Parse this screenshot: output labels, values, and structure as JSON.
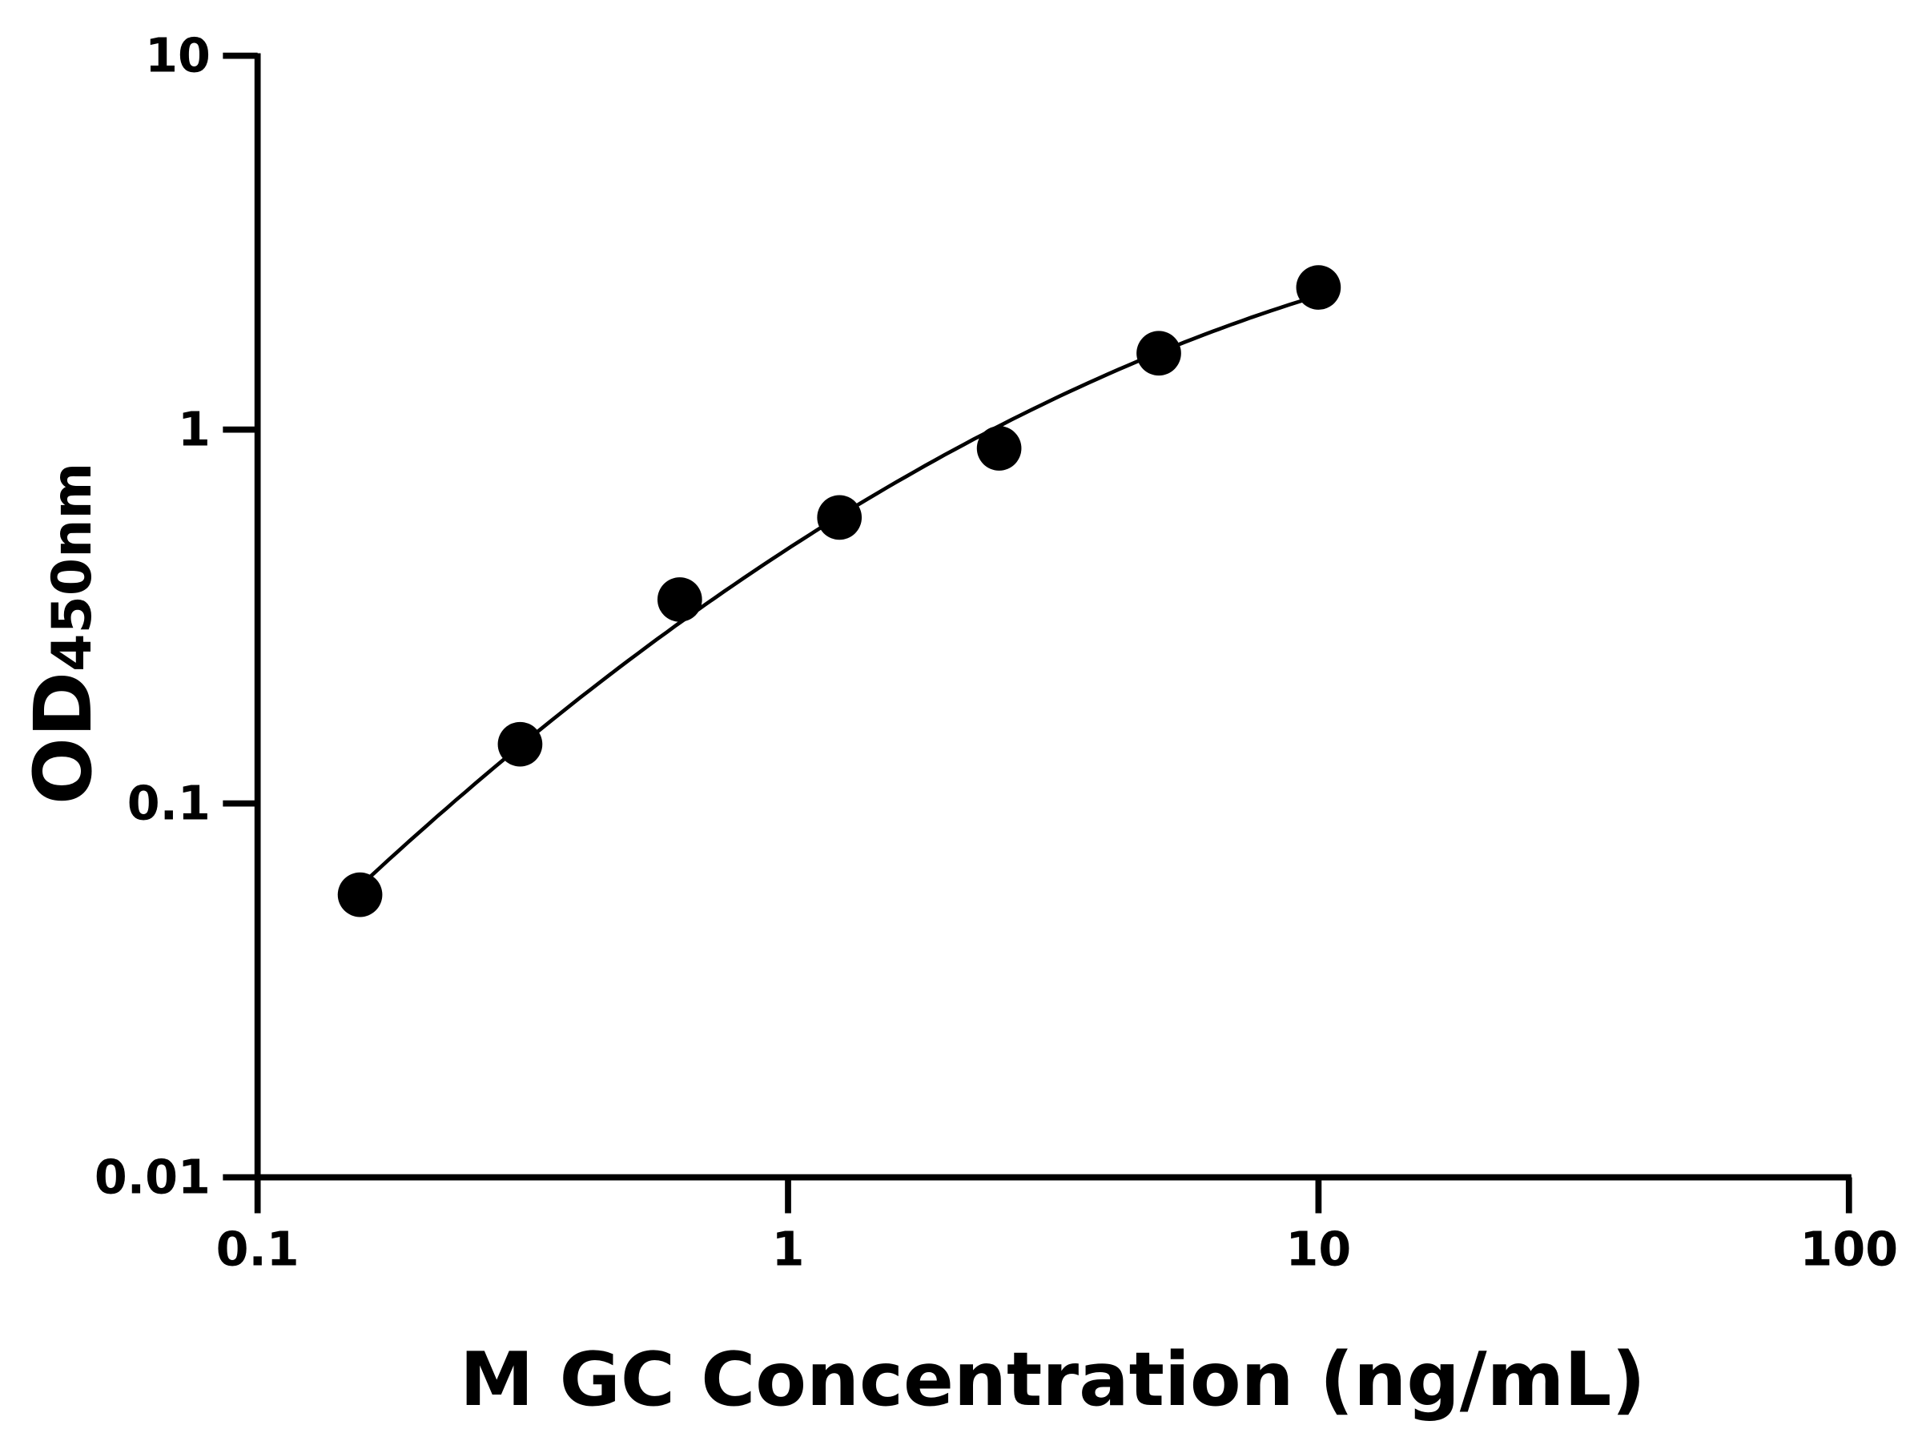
{
  "chart_data": {
    "type": "scatter",
    "title": "",
    "xlabel": "M GC Concentration (ng/mL)",
    "ylabel_main": "OD",
    "ylabel_sub": "450nm",
    "x_scale": "log",
    "y_scale": "log",
    "xlim": [
      0.1,
      100
    ],
    "ylim": [
      0.01,
      10
    ],
    "x_ticks": [
      0.1,
      1,
      10,
      100
    ],
    "x_tick_labels": [
      "0.1",
      "1",
      "10",
      "100"
    ],
    "y_ticks": [
      0.01,
      0.1,
      1,
      10
    ],
    "y_tick_labels": [
      "0.01",
      "0.1",
      "1",
      "10"
    ],
    "grid": false,
    "legend": "none",
    "marker_color": "#000000",
    "curve_color": "#000000",
    "fit_curve": true,
    "series": [
      {
        "x": [
          0.156,
          0.3125,
          0.625,
          1.25,
          2.5,
          5,
          10
        ],
        "y": [
          0.057,
          0.144,
          0.351,
          0.582,
          0.891,
          1.6,
          2.4
        ]
      }
    ]
  }
}
